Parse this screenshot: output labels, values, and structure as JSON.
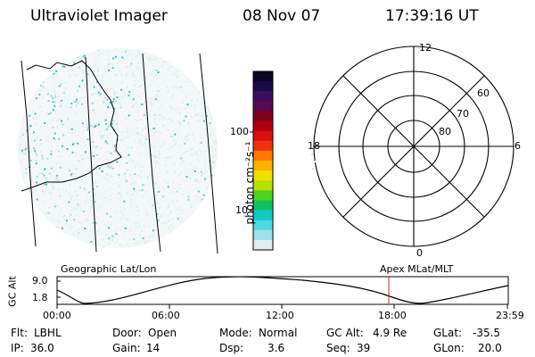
{
  "header": {
    "instrument": "Ultraviolet Imager",
    "date": "08 Nov 07",
    "time": "17:39:16 UT"
  },
  "colorbar": {
    "unit_label": "photon cm⁻²s⁻¹",
    "ticks": [
      "100",
      "10"
    ],
    "colors": [
      "#0a0420",
      "#1a0a4a",
      "#3a0f60",
      "#5a0a50",
      "#800020",
      "#b00010",
      "#d81010",
      "#f03010",
      "#ff7a00",
      "#ffb000",
      "#f0e000",
      "#b8e000",
      "#50d020",
      "#10c060",
      "#10c8c8",
      "#50d8e0",
      "#a0e0e8",
      "#e0eef0"
    ]
  },
  "polar": {
    "mlt_labels": {
      "top": "12",
      "left": "18",
      "right": "6",
      "bottom": "0"
    },
    "lat_labels": [
      "60",
      "70",
      "80"
    ]
  },
  "timeline": {
    "left_label": "Geographic Lat/Lon",
    "right_label": "Apex MLat/MLT",
    "y_axis_label": "GC Alt",
    "y_ticks": [
      "9.0",
      "1.8"
    ],
    "x_ticks": [
      "00:00",
      "06:00",
      "12:00",
      "18:00",
      "23:59"
    ],
    "marker_color": "#cc2222"
  },
  "footer": {
    "row1": [
      {
        "label": "Flt:",
        "value": "LBHL"
      },
      {
        "label": "Door:",
        "value": "Open"
      },
      {
        "label": "Mode:",
        "value": "Normal"
      },
      {
        "label": "GC Alt:",
        "value": "4.9 Re"
      },
      {
        "label": "GLat:",
        "value": "-35.5"
      }
    ],
    "row2": [
      {
        "label": "IP:",
        "value": "36.0"
      },
      {
        "label": "Gain:",
        "value": "14"
      },
      {
        "label": "Dsp:",
        "value": "3.6"
      },
      {
        "label": "Seq:",
        "value": "39"
      },
      {
        "label": "GLon:",
        "value": "20.0"
      }
    ]
  }
}
